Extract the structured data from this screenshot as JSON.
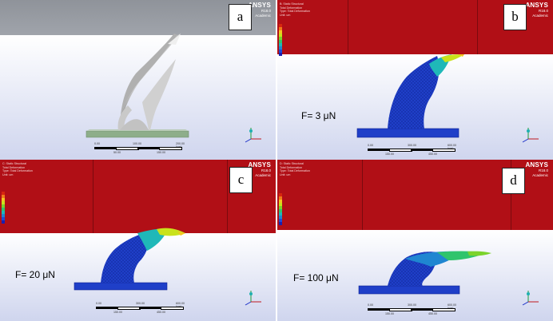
{
  "panels": [
    {
      "id": "a",
      "letter": "a",
      "ansys": {
        "brand": "ANSYS",
        "version": "R18.0",
        "edition": "Academic"
      },
      "scale": {
        "ticks": [
          "0.00",
          "100.00",
          "200.00 (um)"
        ],
        "mid": [
          "50.00",
          "150.00"
        ]
      }
    },
    {
      "id": "b",
      "letter": "b",
      "force": "F= 3 μN",
      "ansys": {
        "brand": "ANSYS",
        "version": "R18.0",
        "edition": "Academic"
      },
      "scale": {
        "ticks": [
          "0.00",
          "300.00",
          "600.00 (um)"
        ],
        "mid": [
          "150.00",
          "450.00"
        ]
      }
    },
    {
      "id": "c",
      "letter": "c",
      "force": "F= 20 μN",
      "ansys": {
        "brand": "ANSYS",
        "version": "R18.0",
        "edition": "Academic"
      },
      "scale": {
        "ticks": [
          "0.00",
          "300.00",
          "600.00 (um)"
        ],
        "mid": [
          "150.00",
          "450.00"
        ]
      }
    },
    {
      "id": "d",
      "letter": "d",
      "force": "F= 100 μN",
      "ansys": {
        "brand": "ANSYS",
        "version": "R18.0",
        "edition": "Academic"
      },
      "scale": {
        "ticks": [
          "0.00",
          "300.00",
          "600.00 (um)"
        ],
        "mid": [
          "150.00",
          "450.00"
        ]
      }
    }
  ],
  "legend_colors": [
    "#d7260f",
    "#f07b1a",
    "#f3c61f",
    "#c9e21b",
    "#7bd32b",
    "#2fc46c",
    "#1fb8b8",
    "#1f86d1",
    "#1f4bd6",
    "#1a1fb0"
  ],
  "colors": {
    "mesh_blue": "#1f3fc8",
    "header_red": "#b10f16",
    "base_green": "#8eae8a"
  }
}
